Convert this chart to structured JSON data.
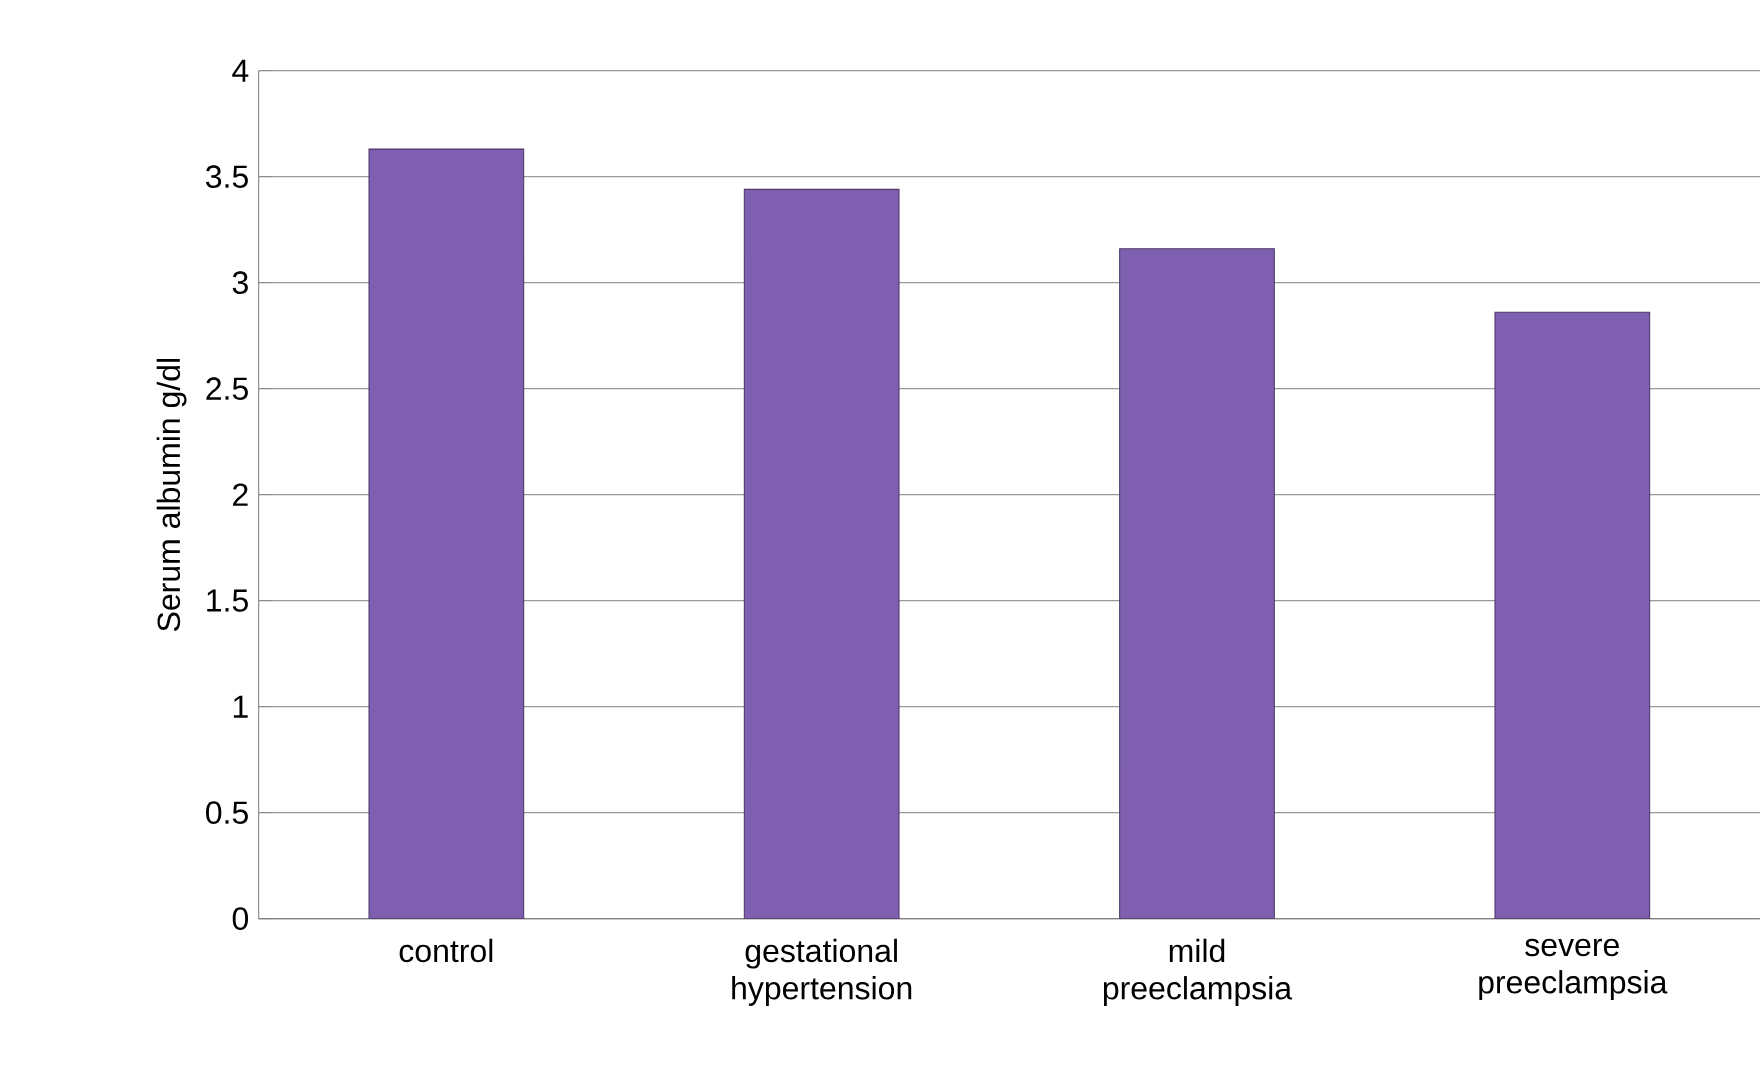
{
  "chart_data": {
    "type": "bar",
    "ylabel": "Serum albumin g/dl",
    "categories": [
      "control",
      "gestational hypertension",
      "mild preeclampsia",
      "severe preeclampsia"
    ],
    "values": [
      3.63,
      3.44,
      3.16,
      2.86
    ],
    "color": "#7f5fb0",
    "ylim": [
      0,
      4
    ],
    "yticks": [
      0,
      0.5,
      1,
      1.5,
      2,
      2.5,
      3,
      3.5,
      4
    ],
    "grid": "y"
  }
}
